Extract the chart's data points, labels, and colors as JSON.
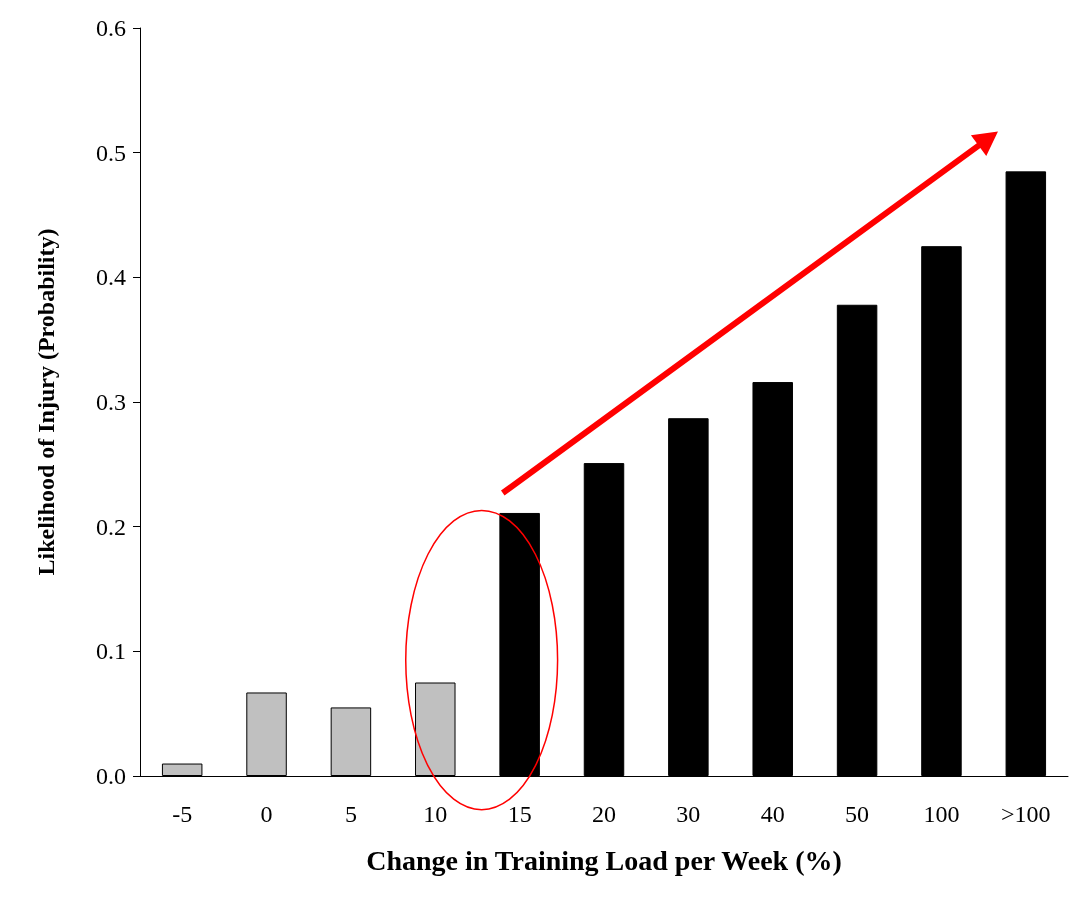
{
  "chart_data": {
    "type": "bar",
    "xlabel": "Change in Training Load per Week (%)",
    "ylabel": "Likelihood of Injury (Probability)",
    "categories": [
      "-5",
      "0",
      "5",
      "10",
      "15",
      "20",
      "30",
      "40",
      "50",
      "100",
      ">100"
    ],
    "values": [
      0.01,
      0.067,
      0.055,
      0.075,
      0.211,
      0.251,
      0.287,
      0.316,
      0.378,
      0.425,
      0.485
    ],
    "colors": [
      "#c0c0c0",
      "#c0c0c0",
      "#c0c0c0",
      "#c0c0c0",
      "#000000",
      "#000000",
      "#000000",
      "#000000",
      "#000000",
      "#000000",
      "#000000"
    ],
    "ylim": [
      0,
      0.6
    ],
    "yticks": [
      {
        "value": 0,
        "label": "0.0"
      },
      0.1,
      0.2,
      0.3,
      0.4,
      0.5,
      0.6
    ],
    "grid": false
  }
}
